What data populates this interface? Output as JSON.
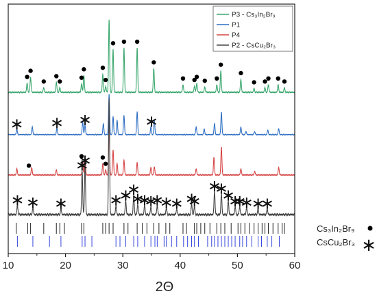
{
  "chart_data": {
    "type": "line",
    "title": "",
    "xlabel": "2Θ",
    "ylabel": "",
    "xlim": [
      10,
      60
    ],
    "xticks": [
      "10",
      "20",
      "30",
      "40",
      "50",
      "60"
    ],
    "grid": false,
    "legend_position": "top-right",
    "series": [
      {
        "name": "P3 - Cs₃In₂Br₉",
        "color": "#3aa76d",
        "peaks": [
          [
            13.3,
            0.12
          ],
          [
            13.9,
            0.2
          ],
          [
            16.2,
            0.06
          ],
          [
            18.4,
            0.13
          ],
          [
            19.0,
            0.06
          ],
          [
            22.8,
            0.11
          ],
          [
            23.2,
            0.22
          ],
          [
            26.5,
            0.24
          ],
          [
            27.0,
            0.08
          ],
          [
            27.6,
            0.95
          ],
          [
            28.3,
            0.56
          ],
          [
            30.2,
            0.58
          ],
          [
            32.5,
            0.58
          ],
          [
            35.4,
            0.31
          ],
          [
            40.5,
            0.1
          ],
          [
            42.5,
            0.08
          ],
          [
            42.9,
            0.12
          ],
          [
            44.3,
            0.07
          ],
          [
            46.4,
            0.1
          ],
          [
            47.1,
            0.28
          ],
          [
            50.6,
            0.17
          ],
          [
            52.9,
            0.05
          ],
          [
            54.8,
            0.06
          ],
          [
            55.4,
            0.1
          ],
          [
            57.1,
            0.1
          ],
          [
            58.2,
            0.06
          ]
        ]
      },
      {
        "name": "P1",
        "color": "#2f6fc4",
        "peaks": [
          [
            11.5,
            0.08
          ],
          [
            14.2,
            0.12
          ],
          [
            18.5,
            0.1
          ],
          [
            23.0,
            0.2
          ],
          [
            23.4,
            0.15
          ],
          [
            26.6,
            0.17
          ],
          [
            27.6,
            0.62
          ],
          [
            28.3,
            0.28
          ],
          [
            29.0,
            0.22
          ],
          [
            30.2,
            0.3
          ],
          [
            32.5,
            0.35
          ],
          [
            34.9,
            0.12
          ],
          [
            35.5,
            0.22
          ],
          [
            42.8,
            0.12
          ],
          [
            44.2,
            0.09
          ],
          [
            46.0,
            0.17
          ],
          [
            47.2,
            0.35
          ],
          [
            50.6,
            0.12
          ],
          [
            51.5,
            0.05
          ],
          [
            53.0,
            0.05
          ],
          [
            55.3,
            0.07
          ],
          [
            57.2,
            0.09
          ]
        ]
      },
      {
        "name": "P4",
        "color": "#d64545",
        "peaks": [
          [
            11.5,
            0.1
          ],
          [
            14.1,
            0.12
          ],
          [
            18.4,
            0.08
          ],
          [
            23.0,
            0.2
          ],
          [
            23.4,
            0.3
          ],
          [
            26.5,
            0.18
          ],
          [
            27.0,
            0.08
          ],
          [
            27.6,
            0.75
          ],
          [
            28.3,
            0.4
          ],
          [
            29.0,
            0.18
          ],
          [
            30.2,
            0.24
          ],
          [
            32.5,
            0.2
          ],
          [
            34.9,
            0.12
          ],
          [
            35.5,
            0.13
          ],
          [
            42.8,
            0.1
          ],
          [
            45.9,
            0.28
          ],
          [
            47.2,
            0.45
          ],
          [
            50.6,
            0.1
          ],
          [
            53.0,
            0.06
          ],
          [
            57.2,
            0.12
          ]
        ]
      },
      {
        "name": "P2 - CsCu₂Br₃",
        "color": "#444444",
        "peaks": [
          [
            11.6,
            0.08
          ],
          [
            14.3,
            0.06
          ],
          [
            19.2,
            0.05
          ],
          [
            22.9,
            0.38
          ],
          [
            23.4,
            0.42
          ],
          [
            27.6,
            1.0
          ],
          [
            28.8,
            0.08
          ],
          [
            30.5,
            0.12
          ],
          [
            31.9,
            0.17
          ],
          [
            32.6,
            0.09
          ],
          [
            33.8,
            0.08
          ],
          [
            34.9,
            0.07
          ],
          [
            36.0,
            0.08
          ],
          [
            37.6,
            0.06
          ],
          [
            39.4,
            0.05
          ],
          [
            42.0,
            0.09
          ],
          [
            42.5,
            0.07
          ],
          [
            46.0,
            0.2
          ],
          [
            47.2,
            0.18
          ],
          [
            48.4,
            0.12
          ],
          [
            49.6,
            0.07
          ],
          [
            50.4,
            0.07
          ],
          [
            51.6,
            0.06
          ],
          [
            53.6,
            0.05
          ],
          [
            55.2,
            0.05
          ]
        ]
      }
    ],
    "markers": {
      "P3 - Cs₃In₂Br₉": {
        "symbol": "dot",
        "x": [
          13.3,
          13.9,
          16.2,
          18.4,
          19.0,
          22.8,
          23.2,
          26.5,
          27.0,
          28.3,
          30.2,
          32.5,
          35.4,
          40.5,
          42.5,
          42.9,
          44.3,
          46.4,
          47.1,
          50.6,
          52.9,
          54.8,
          55.4,
          57.1,
          58.2
        ]
      },
      "P1": {
        "symbol": "star",
        "x": [
          11.5,
          18.5,
          23.4,
          35.0
        ]
      },
      "P4": {
        "symbol": "dot",
        "x": [
          13.6,
          22.8,
          26.5,
          27.0
        ]
      },
      "P2 - CsCu₂Br₃": {
        "symbol": "star",
        "x": [
          11.6,
          14.3,
          19.2,
          22.9,
          23.4,
          28.8,
          30.5,
          31.9,
          32.6,
          33.8,
          34.9,
          36.0,
          37.6,
          39.4,
          42.0,
          42.5,
          46.0,
          47.2,
          48.4,
          49.6,
          50.4,
          51.6,
          53.6,
          55.2
        ]
      }
    },
    "reference_patterns": [
      {
        "name": "Cs₃In₂Br₉",
        "symbol": "dot",
        "color": "#222222",
        "x": [
          11.4,
          13.4,
          13.9,
          16.2,
          18.4,
          19.0,
          19.8,
          22.8,
          23.2,
          26.5,
          27.0,
          27.6,
          28.3,
          30.2,
          30.9,
          32.5,
          33.4,
          34.2,
          35.4,
          36.3,
          37.5,
          38.2,
          40.5,
          41.1,
          42.5,
          42.9,
          43.6,
          44.3,
          45.2,
          46.4,
          47.1,
          47.8,
          48.9,
          50.1,
          50.6,
          51.3,
          52.1,
          52.9,
          53.6,
          54.3,
          54.8,
          55.4,
          56.2,
          57.1,
          57.8,
          58.2
        ]
      },
      {
        "name": "CsCu₂Br₃",
        "symbol": "star",
        "color": "#3344dd",
        "x": [
          11.6,
          14.3,
          17.2,
          19.2,
          22.9,
          23.4,
          24.6,
          28.8,
          29.5,
          30.5,
          31.9,
          32.6,
          33.8,
          34.9,
          35.6,
          36.0,
          37.2,
          37.6,
          38.5,
          39.4,
          40.6,
          41.3,
          42.0,
          42.5,
          43.2,
          44.8,
          45.5,
          46.0,
          46.6,
          47.2,
          47.8,
          48.4,
          49.0,
          49.6,
          50.4,
          50.9,
          51.6,
          52.5,
          53.6,
          54.2,
          55.2,
          56.0,
          57.3
        ]
      }
    ]
  }
}
